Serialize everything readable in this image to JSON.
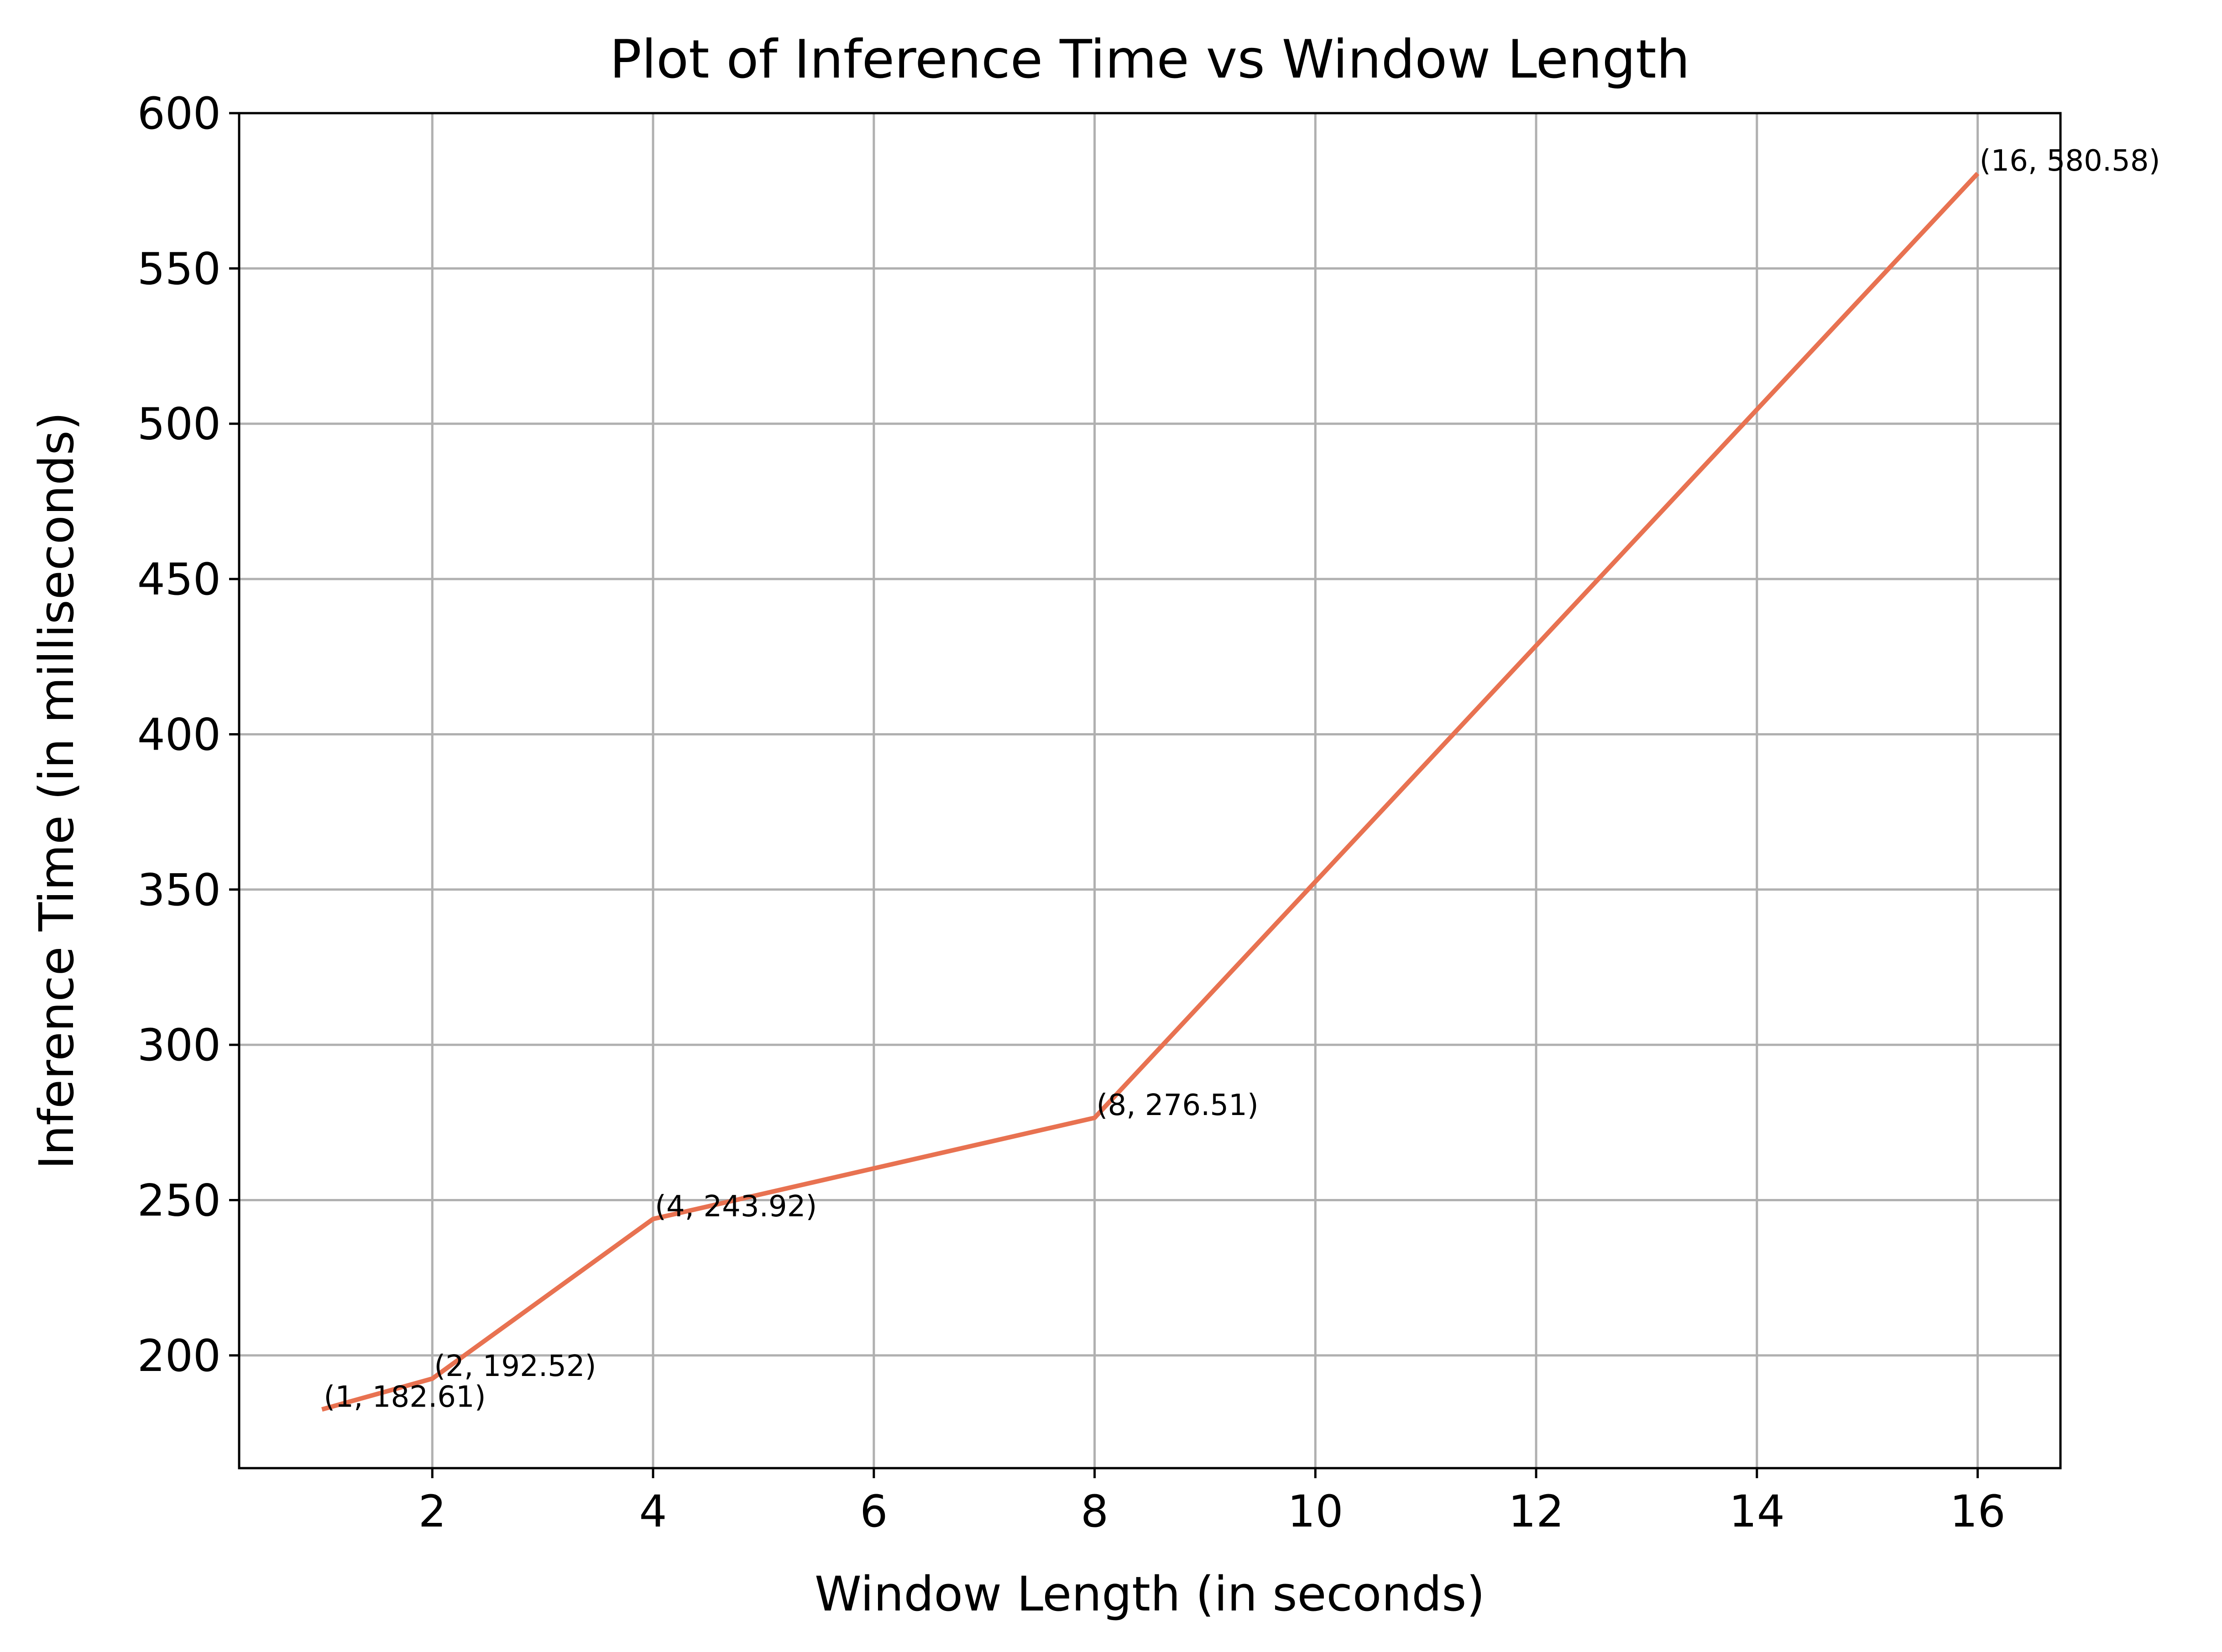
{
  "chart_data": {
    "type": "line",
    "title": "Plot of Inference Time vs Window Length",
    "xlabel": "Window Length (in seconds)",
    "ylabel": "Inference Time (in milliseconds)",
    "xlim": [
      0.25,
      16.75
    ],
    "ylim": [
      163.7,
      600
    ],
    "x_ticks": [
      2,
      4,
      6,
      8,
      10,
      12,
      14,
      16
    ],
    "y_ticks": [
      200,
      250,
      300,
      350,
      400,
      450,
      500,
      550,
      600
    ],
    "x_tick_labels": [
      "2",
      "4",
      "6",
      "8",
      "10",
      "12",
      "14",
      "16"
    ],
    "y_tick_labels": [
      "200",
      "250",
      "300",
      "350",
      "400",
      "450",
      "500",
      "550",
      "600"
    ],
    "grid": true,
    "series": [
      {
        "name": "Inference Time",
        "color": "#E87251",
        "x": [
          1,
          2,
          4,
          8,
          16
        ],
        "values": [
          182.61,
          192.52,
          243.92,
          276.51,
          580.58
        ]
      }
    ],
    "annotations": [
      "(1, 182.61)",
      "(2, 192.52)",
      "(4, 243.92)",
      "(8, 276.51)",
      "(16, 580.58)"
    ]
  }
}
